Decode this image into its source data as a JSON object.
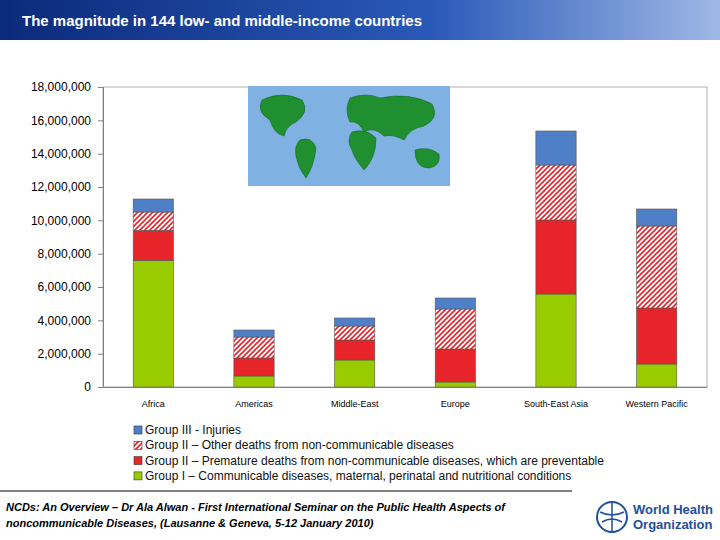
{
  "chart_data": {
    "type": "bar",
    "stacked": true,
    "title": "The magnitude in 144 low- and middle-income countries",
    "categories": [
      "Africa",
      "Americas",
      "Middle-East",
      "Europe",
      "South-East Asia",
      "Western Pacific"
    ],
    "series": [
      {
        "name": "Group I – Communicable diseases, maternal, perinatal and nutritional conditions",
        "color": "#99cc00",
        "values": [
          7600000,
          660000,
          1620000,
          300000,
          5580000,
          1380000
        ]
      },
      {
        "name": "Group II – Premature deaths from non-communicable diseases, which are preventable",
        "color": "#e8242b",
        "values": [
          1800000,
          1080000,
          1200000,
          1980000,
          4440000,
          3360000
        ]
      },
      {
        "name": "Group II – Other deaths from non-communicable diseases",
        "color": "#e8242b",
        "line_style": "hatched",
        "values": [
          1100000,
          1260000,
          840000,
          2400000,
          3300000,
          4920000
        ]
      },
      {
        "name": "Group III - Injuries",
        "color": "#4f7fc6",
        "values": [
          780000,
          420000,
          480000,
          660000,
          2040000,
          1020000
        ]
      }
    ],
    "ylim": [
      0,
      18000000
    ],
    "yticks": [
      0,
      {
        "value": 2000000,
        "label": "2,000,000"
      },
      {
        "value": 4000000,
        "label": "4,000,000"
      },
      {
        "value": 6000000,
        "label": "6,000,000"
      },
      {
        "value": 8000000,
        "label": "8,000,000"
      },
      {
        "value": 10000000,
        "label": "10,000,000"
      },
      {
        "value": 12000000,
        "label": "12,000,000"
      },
      {
        "value": 14000000,
        "label": "14,000,000"
      },
      {
        "value": 16000000,
        "label": "16,000,000"
      },
      {
        "value": 18000000,
        "label": "18,000,000"
      }
    ],
    "grid": false,
    "legend": "bottom"
  },
  "footer": {
    "citation": [
      "NCDs: An Overview – Dr Ala Alwan - First International Seminar on the Public Health Aspects of",
      "noncommunicable Diseases, (Lausanne & Geneva, 5-12 January 2010)"
    ],
    "logo": [
      "World Health",
      "Organization"
    ]
  }
}
